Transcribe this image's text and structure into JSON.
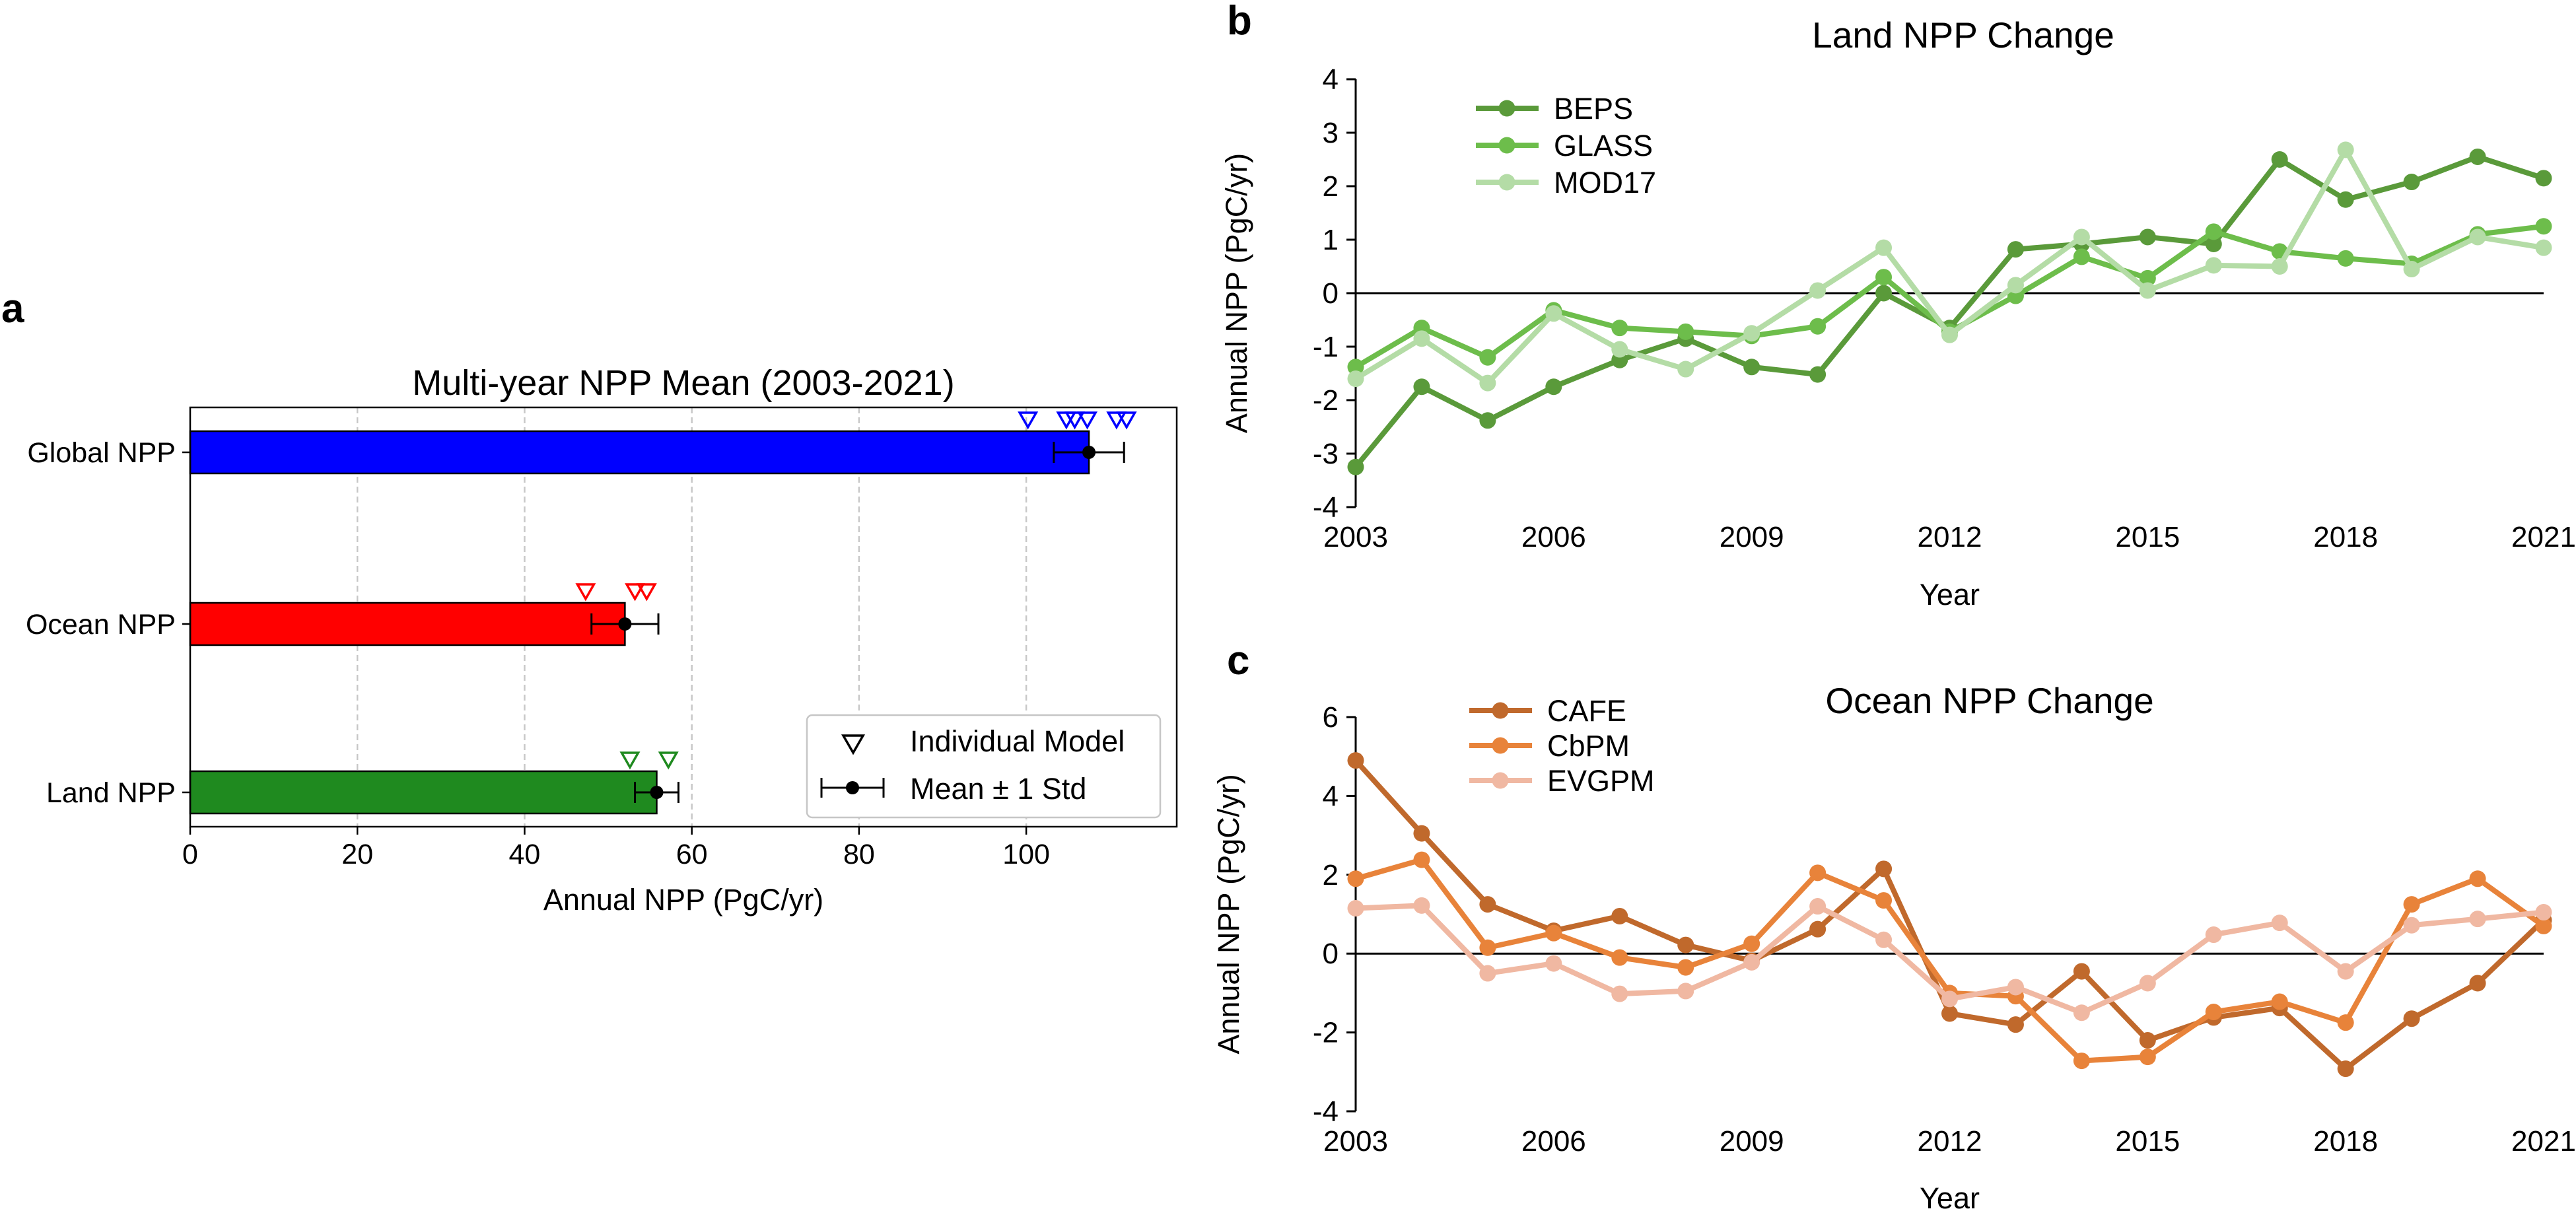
{
  "panels": {
    "a": {
      "letter": "a"
    },
    "b": {
      "letter": "b"
    },
    "c": {
      "letter": "c"
    }
  },
  "chart_data": [
    {
      "id": "a",
      "type": "bar",
      "orientation": "horizontal",
      "title": "Multi-year NPP Mean (2003-2021)",
      "xlabel": "Annual NPP (PgC/yr)",
      "ylabel": "",
      "xlim": [
        0,
        118
      ],
      "xticks": [
        0,
        20,
        40,
        60,
        80,
        100
      ],
      "xtick_labels": [
        "0",
        "20",
        "40",
        "60",
        "80",
        "100"
      ],
      "grid": "vertical dashed",
      "categories": [
        "Global NPP",
        "Ocean NPP",
        "Land NPP"
      ],
      "values": [
        107.5,
        52.0,
        55.8
      ],
      "std": [
        4.2,
        4.0,
        2.6
      ],
      "bar_colors": [
        "#0000ff",
        "#ff0000",
        "#1f8a1f"
      ],
      "individual_models": [
        [
          100.2,
          104.8,
          105.8,
          107.3,
          110.8,
          112.0
        ],
        [
          47.3,
          53.2,
          54.6
        ],
        [
          52.6,
          57.2
        ]
      ],
      "legend": {
        "position": "lower-right",
        "entries": [
          {
            "marker": "open-triangle-down",
            "label": "Individual Model"
          },
          {
            "marker": "dot-errorbar",
            "label": "Mean ± 1 Std"
          }
        ]
      }
    },
    {
      "id": "b",
      "type": "line",
      "title": "Land NPP Change",
      "xlabel": "Year",
      "ylabel": "Annual NPP (PgC/yr)",
      "xlim": [
        2003,
        2021
      ],
      "ylim": [
        -4,
        4
      ],
      "xticks": [
        2003,
        2006,
        2009,
        2012,
        2015,
        2018,
        2021
      ],
      "yticks": [
        -4,
        -3,
        -2,
        -1,
        0,
        1,
        2,
        3,
        4
      ],
      "zero_line": true,
      "legend_position": "top-left",
      "x": [
        2003,
        2004,
        2005,
        2006,
        2007,
        2008,
        2009,
        2010,
        2011,
        2012,
        2013,
        2014,
        2015,
        2016,
        2017,
        2018,
        2019,
        2020,
        2021
      ],
      "series": [
        {
          "name": "BEPS",
          "color": "#5a9a3a",
          "values": [
            -3.25,
            -1.75,
            -2.38,
            -1.75,
            -1.25,
            -0.85,
            -1.38,
            -1.52,
            0.0,
            -0.65,
            0.82,
            0.92,
            1.05,
            0.92,
            2.5,
            1.75,
            2.08,
            2.55,
            2.15
          ]
        },
        {
          "name": "GLASS",
          "color": "#6dbd4b",
          "values": [
            -1.38,
            -0.65,
            -1.2,
            -0.32,
            -0.65,
            -0.72,
            -0.8,
            -0.62,
            0.3,
            -0.72,
            -0.05,
            0.68,
            0.28,
            1.15,
            0.78,
            0.65,
            0.55,
            1.1,
            1.25
          ]
        },
        {
          "name": "MOD17",
          "color": "#b4dca6",
          "values": [
            -1.6,
            -0.85,
            -1.68,
            -0.38,
            -1.05,
            -1.42,
            -0.75,
            0.05,
            0.85,
            -0.78,
            0.15,
            1.05,
            0.05,
            0.52,
            0.5,
            2.68,
            0.45,
            1.05,
            0.85
          ]
        }
      ]
    },
    {
      "id": "c",
      "type": "line",
      "title": "Ocean NPP Change",
      "xlabel": "Year",
      "ylabel": "Annual NPP (PgC/yr)",
      "xlim": [
        2003,
        2021
      ],
      "ylim": [
        -4,
        6
      ],
      "xticks": [
        2003,
        2006,
        2009,
        2012,
        2015,
        2018,
        2021
      ],
      "yticks": [
        -4,
        -2,
        0,
        2,
        4,
        6
      ],
      "zero_line": true,
      "legend_position": "top-left",
      "x": [
        2003,
        2004,
        2005,
        2006,
        2007,
        2008,
        2009,
        2010,
        2011,
        2012,
        2013,
        2014,
        2015,
        2016,
        2017,
        2018,
        2019,
        2020,
        2021
      ],
      "series": [
        {
          "name": "CAFE",
          "color": "#c0692c",
          "values": [
            4.9,
            3.05,
            1.25,
            0.58,
            0.95,
            0.22,
            -0.18,
            0.62,
            2.15,
            -1.52,
            -1.8,
            -0.45,
            -2.2,
            -1.62,
            -1.38,
            -2.92,
            -1.65,
            -0.75,
            0.85
          ]
        },
        {
          "name": "CbPM",
          "color": "#e8833a",
          "values": [
            1.9,
            2.38,
            0.15,
            0.52,
            -0.1,
            -0.35,
            0.25,
            2.05,
            1.35,
            -1.0,
            -1.08,
            -2.72,
            -2.62,
            -1.48,
            -1.22,
            -1.75,
            1.25,
            1.9,
            0.7
          ]
        },
        {
          "name": "EVGPM",
          "color": "#f0b8a2",
          "values": [
            1.15,
            1.22,
            -0.5,
            -0.25,
            -1.02,
            -0.95,
            -0.22,
            1.2,
            0.35,
            -1.15,
            -0.85,
            -1.5,
            -0.75,
            0.48,
            0.78,
            -0.45,
            0.72,
            0.88,
            1.05
          ]
        }
      ]
    }
  ]
}
